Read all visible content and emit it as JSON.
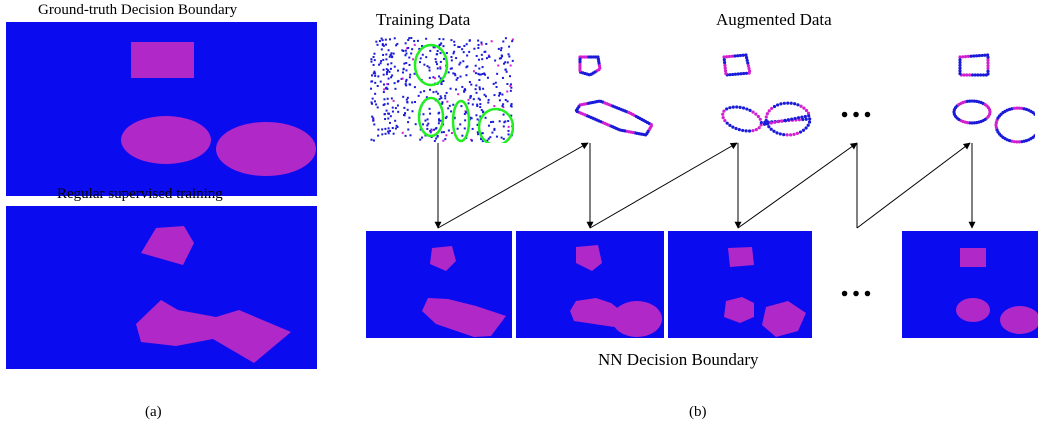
{
  "panel_a": {
    "gt_title": "Ground-truth Decision Boundary",
    "sup_title": "Regular supervised training",
    "caption": "(a)"
  },
  "panel_b": {
    "training_title": "Training Data",
    "augmented_title": "Augmented Data",
    "nn_title": "NN Decision Boundary",
    "caption": "(b)",
    "ellipsis": "…"
  },
  "colors": {
    "background_class": "#0b0bf0",
    "positive_class": "#b028c8",
    "point_blue": "#1a1ad8",
    "point_magenta": "#d020d0",
    "highlight_circle": "#22ee22",
    "arrow": "#000000"
  },
  "icons": [
    "rectangle-region",
    "ellipse-region",
    "polygon-region",
    "arrow",
    "highlight-circle"
  ]
}
